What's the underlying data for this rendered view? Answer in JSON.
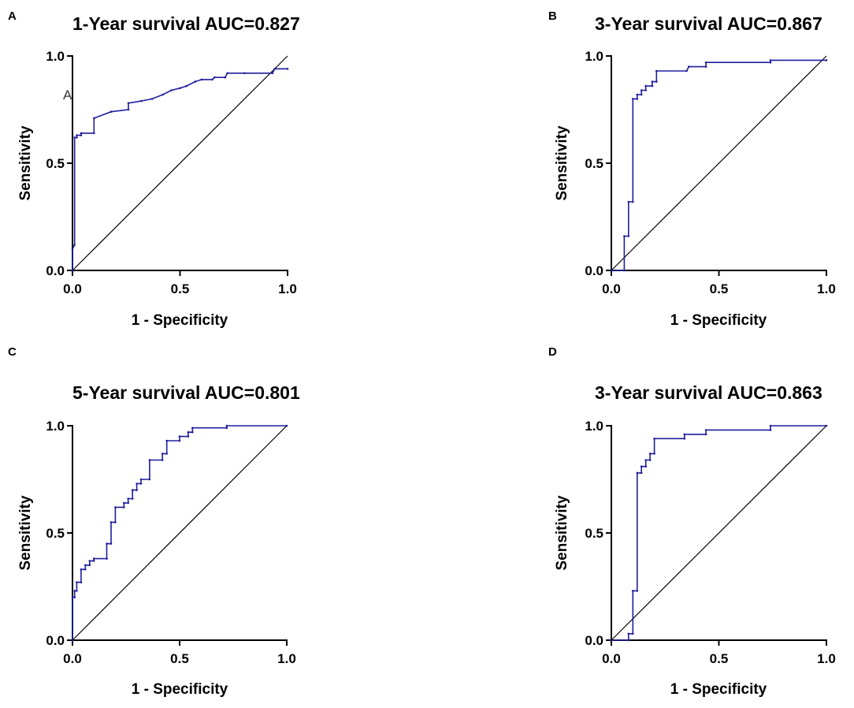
{
  "colors": {
    "roc_line": "#1f1f9e",
    "axis": "#000000",
    "reference_line": "#000000"
  },
  "chart_data": [
    {
      "panel": "A",
      "type": "line",
      "title": "1-Year survival AUC=0.827",
      "xlabel": "1 - Specificity",
      "ylabel": "Sensitivity",
      "xlim": [
        0,
        1
      ],
      "ylim": [
        0,
        1
      ],
      "xticks": [
        "0.0",
        "0.5",
        "1.0"
      ],
      "yticks": [
        "0.0",
        "0.5",
        "1.0"
      ],
      "annotation": "A",
      "reference_line": [
        [
          0,
          0
        ],
        [
          1,
          1
        ]
      ],
      "series": [
        {
          "name": "ROC",
          "x": [
            0.0,
            0.0,
            0.01,
            0.01,
            0.02,
            0.02,
            0.04,
            0.04,
            0.1,
            0.1,
            0.18,
            0.26,
            0.26,
            0.32,
            0.37,
            0.42,
            0.46,
            0.5,
            0.53,
            0.57,
            0.6,
            0.65,
            0.66,
            0.71,
            0.72,
            0.8,
            0.93,
            0.94,
            1.0
          ],
          "y": [
            0.0,
            0.1,
            0.12,
            0.62,
            0.62,
            0.63,
            0.63,
            0.64,
            0.64,
            0.71,
            0.74,
            0.75,
            0.78,
            0.79,
            0.8,
            0.82,
            0.84,
            0.85,
            0.86,
            0.88,
            0.89,
            0.89,
            0.9,
            0.9,
            0.92,
            0.92,
            0.92,
            0.94,
            0.94
          ]
        }
      ]
    },
    {
      "panel": "B",
      "type": "line",
      "title": "3-Year survival AUC=0.867",
      "xlabel": "1 - Specificity",
      "ylabel": "Sensitivity",
      "xlim": [
        0,
        1
      ],
      "ylim": [
        0,
        1
      ],
      "xticks": [
        "0.0",
        "0.5",
        "1.0"
      ],
      "yticks": [
        "0.0",
        "0.5",
        "1.0"
      ],
      "reference_line": [
        [
          0,
          0
        ],
        [
          1,
          1
        ]
      ],
      "series": [
        {
          "name": "ROC",
          "x": [
            0.0,
            0.06,
            0.06,
            0.08,
            0.08,
            0.1,
            0.1,
            0.12,
            0.12,
            0.14,
            0.14,
            0.16,
            0.16,
            0.19,
            0.19,
            0.21,
            0.21,
            0.35,
            0.36,
            0.44,
            0.44,
            0.74,
            0.74,
            1.0
          ],
          "y": [
            0.0,
            0.0,
            0.16,
            0.16,
            0.32,
            0.32,
            0.8,
            0.8,
            0.82,
            0.82,
            0.84,
            0.84,
            0.86,
            0.86,
            0.88,
            0.88,
            0.93,
            0.93,
            0.95,
            0.95,
            0.97,
            0.97,
            0.98,
            0.98
          ]
        }
      ]
    },
    {
      "panel": "C",
      "type": "line",
      "title": "5-Year survival AUC=0.801",
      "xlabel": "1 - Specificity",
      "ylabel": "Sensitivity",
      "xlim": [
        0,
        1
      ],
      "ylim": [
        0,
        1
      ],
      "xticks": [
        "0.0",
        "0.5",
        "1.0"
      ],
      "yticks": [
        "0.0",
        "0.5",
        "1.0"
      ],
      "reference_line": [
        [
          0,
          0
        ],
        [
          1,
          1
        ]
      ],
      "series": [
        {
          "name": "ROC",
          "x": [
            0.0,
            0.0,
            0.01,
            0.01,
            0.02,
            0.02,
            0.04,
            0.04,
            0.06,
            0.06,
            0.08,
            0.08,
            0.1,
            0.1,
            0.16,
            0.16,
            0.18,
            0.18,
            0.2,
            0.2,
            0.24,
            0.24,
            0.26,
            0.26,
            0.28,
            0.28,
            0.3,
            0.3,
            0.32,
            0.32,
            0.36,
            0.36,
            0.42,
            0.42,
            0.44,
            0.44,
            0.5,
            0.5,
            0.54,
            0.54,
            0.56,
            0.56,
            0.72,
            0.72,
            1.0
          ],
          "y": [
            0.0,
            0.2,
            0.2,
            0.23,
            0.23,
            0.27,
            0.27,
            0.33,
            0.33,
            0.35,
            0.35,
            0.37,
            0.37,
            0.38,
            0.38,
            0.45,
            0.45,
            0.55,
            0.55,
            0.62,
            0.62,
            0.64,
            0.64,
            0.66,
            0.66,
            0.7,
            0.7,
            0.73,
            0.73,
            0.75,
            0.75,
            0.84,
            0.84,
            0.87,
            0.87,
            0.93,
            0.93,
            0.95,
            0.95,
            0.97,
            0.97,
            0.99,
            0.99,
            1.0,
            1.0
          ]
        }
      ]
    },
    {
      "panel": "D",
      "type": "line",
      "title": "3-Year survival AUC=0.863",
      "xlabel": "1 - Specificity",
      "ylabel": "Sensitivity",
      "xlim": [
        0,
        1
      ],
      "ylim": [
        0,
        1
      ],
      "xticks": [
        "0.0",
        "0.5",
        "1.0"
      ],
      "yticks": [
        "0.0",
        "0.5",
        "1.0"
      ],
      "reference_line": [
        [
          0,
          0
        ],
        [
          1,
          1
        ]
      ],
      "series": [
        {
          "name": "ROC",
          "x": [
            0.0,
            0.08,
            0.08,
            0.1,
            0.1,
            0.12,
            0.12,
            0.14,
            0.14,
            0.16,
            0.16,
            0.18,
            0.18,
            0.2,
            0.2,
            0.34,
            0.34,
            0.44,
            0.44,
            0.74,
            0.74,
            1.0
          ],
          "y": [
            0.0,
            0.0,
            0.03,
            0.03,
            0.23,
            0.23,
            0.78,
            0.78,
            0.81,
            0.81,
            0.84,
            0.84,
            0.87,
            0.87,
            0.94,
            0.94,
            0.96,
            0.96,
            0.98,
            0.98,
            1.0,
            1.0
          ]
        }
      ]
    }
  ]
}
